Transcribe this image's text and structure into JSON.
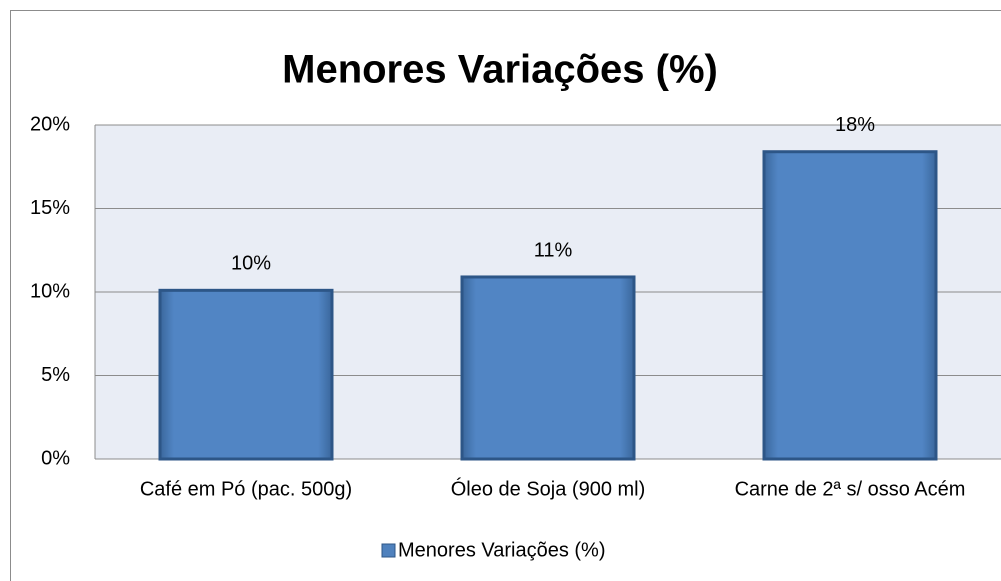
{
  "chart_data": {
    "type": "bar",
    "title": "Menores Variações (%)",
    "categories": [
      "Café em Pó  (pac. 500g)",
      "Óleo de Soja (900 ml)",
      "Carne de 2ª s/ osso Acém"
    ],
    "series": [
      {
        "name": "Menores Variações (%)",
        "color": "#4f81bd",
        "values": [
          10.1,
          10.9,
          18.4
        ],
        "value_labels": [
          "10%",
          "11%",
          "18%"
        ]
      }
    ],
    "ylim": [
      0,
      20
    ],
    "yticks": [
      {
        "value": 0,
        "label": "0%"
      },
      {
        "value": 5,
        "label": "5%"
      },
      {
        "value": 10,
        "label": "10%"
      },
      {
        "value": 15,
        "label": "15%"
      },
      {
        "value": 20,
        "label": "20%"
      }
    ],
    "grid": true,
    "legend": "bottom"
  }
}
